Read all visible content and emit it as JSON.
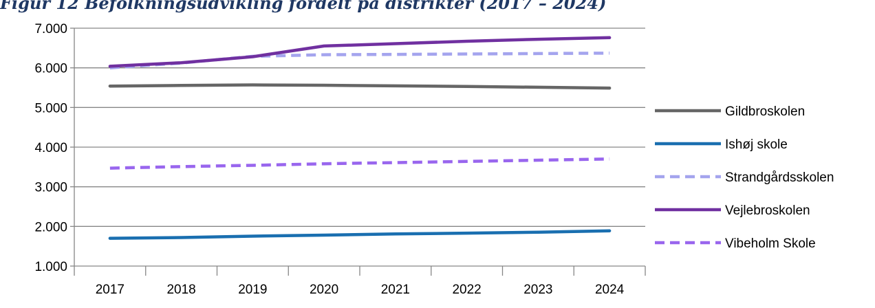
{
  "caption": "Figur 12 Befolkningsudvikling fordelt på distrikter (2017 – 2024)",
  "chart_data": {
    "type": "line",
    "title": "",
    "xlabel": "",
    "ylabel": "",
    "categories": [
      "2017",
      "2018",
      "2019",
      "2020",
      "2021",
      "2022",
      "2023",
      "2024"
    ],
    "ylim": [
      1000,
      7000
    ],
    "yticks": [
      1000,
      2000,
      3000,
      4000,
      5000,
      6000,
      7000
    ],
    "ytick_labels": [
      "1.000",
      "2.000",
      "3.000",
      "4.000",
      "5.000",
      "6.000",
      "7.000"
    ],
    "grid": "horizontal",
    "legend": "right",
    "series": [
      {
        "name": "Gildbroskolen",
        "color": "#666666",
        "dash": false,
        "values": [
          5540,
          5555,
          5570,
          5560,
          5545,
          5530,
          5510,
          5490
        ]
      },
      {
        "name": "Ishøj skole",
        "color": "#1a6fb0",
        "dash": false,
        "values": [
          1700,
          1720,
          1755,
          1780,
          1810,
          1830,
          1855,
          1890
        ]
      },
      {
        "name": "Strandgårdsskolen",
        "color": "#a4a4ee",
        "dash": true,
        "values": [
          6000,
          6120,
          6290,
          6330,
          6340,
          6350,
          6360,
          6370
        ]
      },
      {
        "name": "Vejlebroskolen",
        "color": "#7030a0",
        "dash": false,
        "values": [
          6040,
          6130,
          6280,
          6550,
          6610,
          6670,
          6720,
          6760
        ]
      },
      {
        "name": "Vibeholm Skole",
        "color": "#9966ee",
        "dash": true,
        "values": [
          3470,
          3510,
          3540,
          3580,
          3610,
          3640,
          3670,
          3700
        ]
      }
    ]
  }
}
